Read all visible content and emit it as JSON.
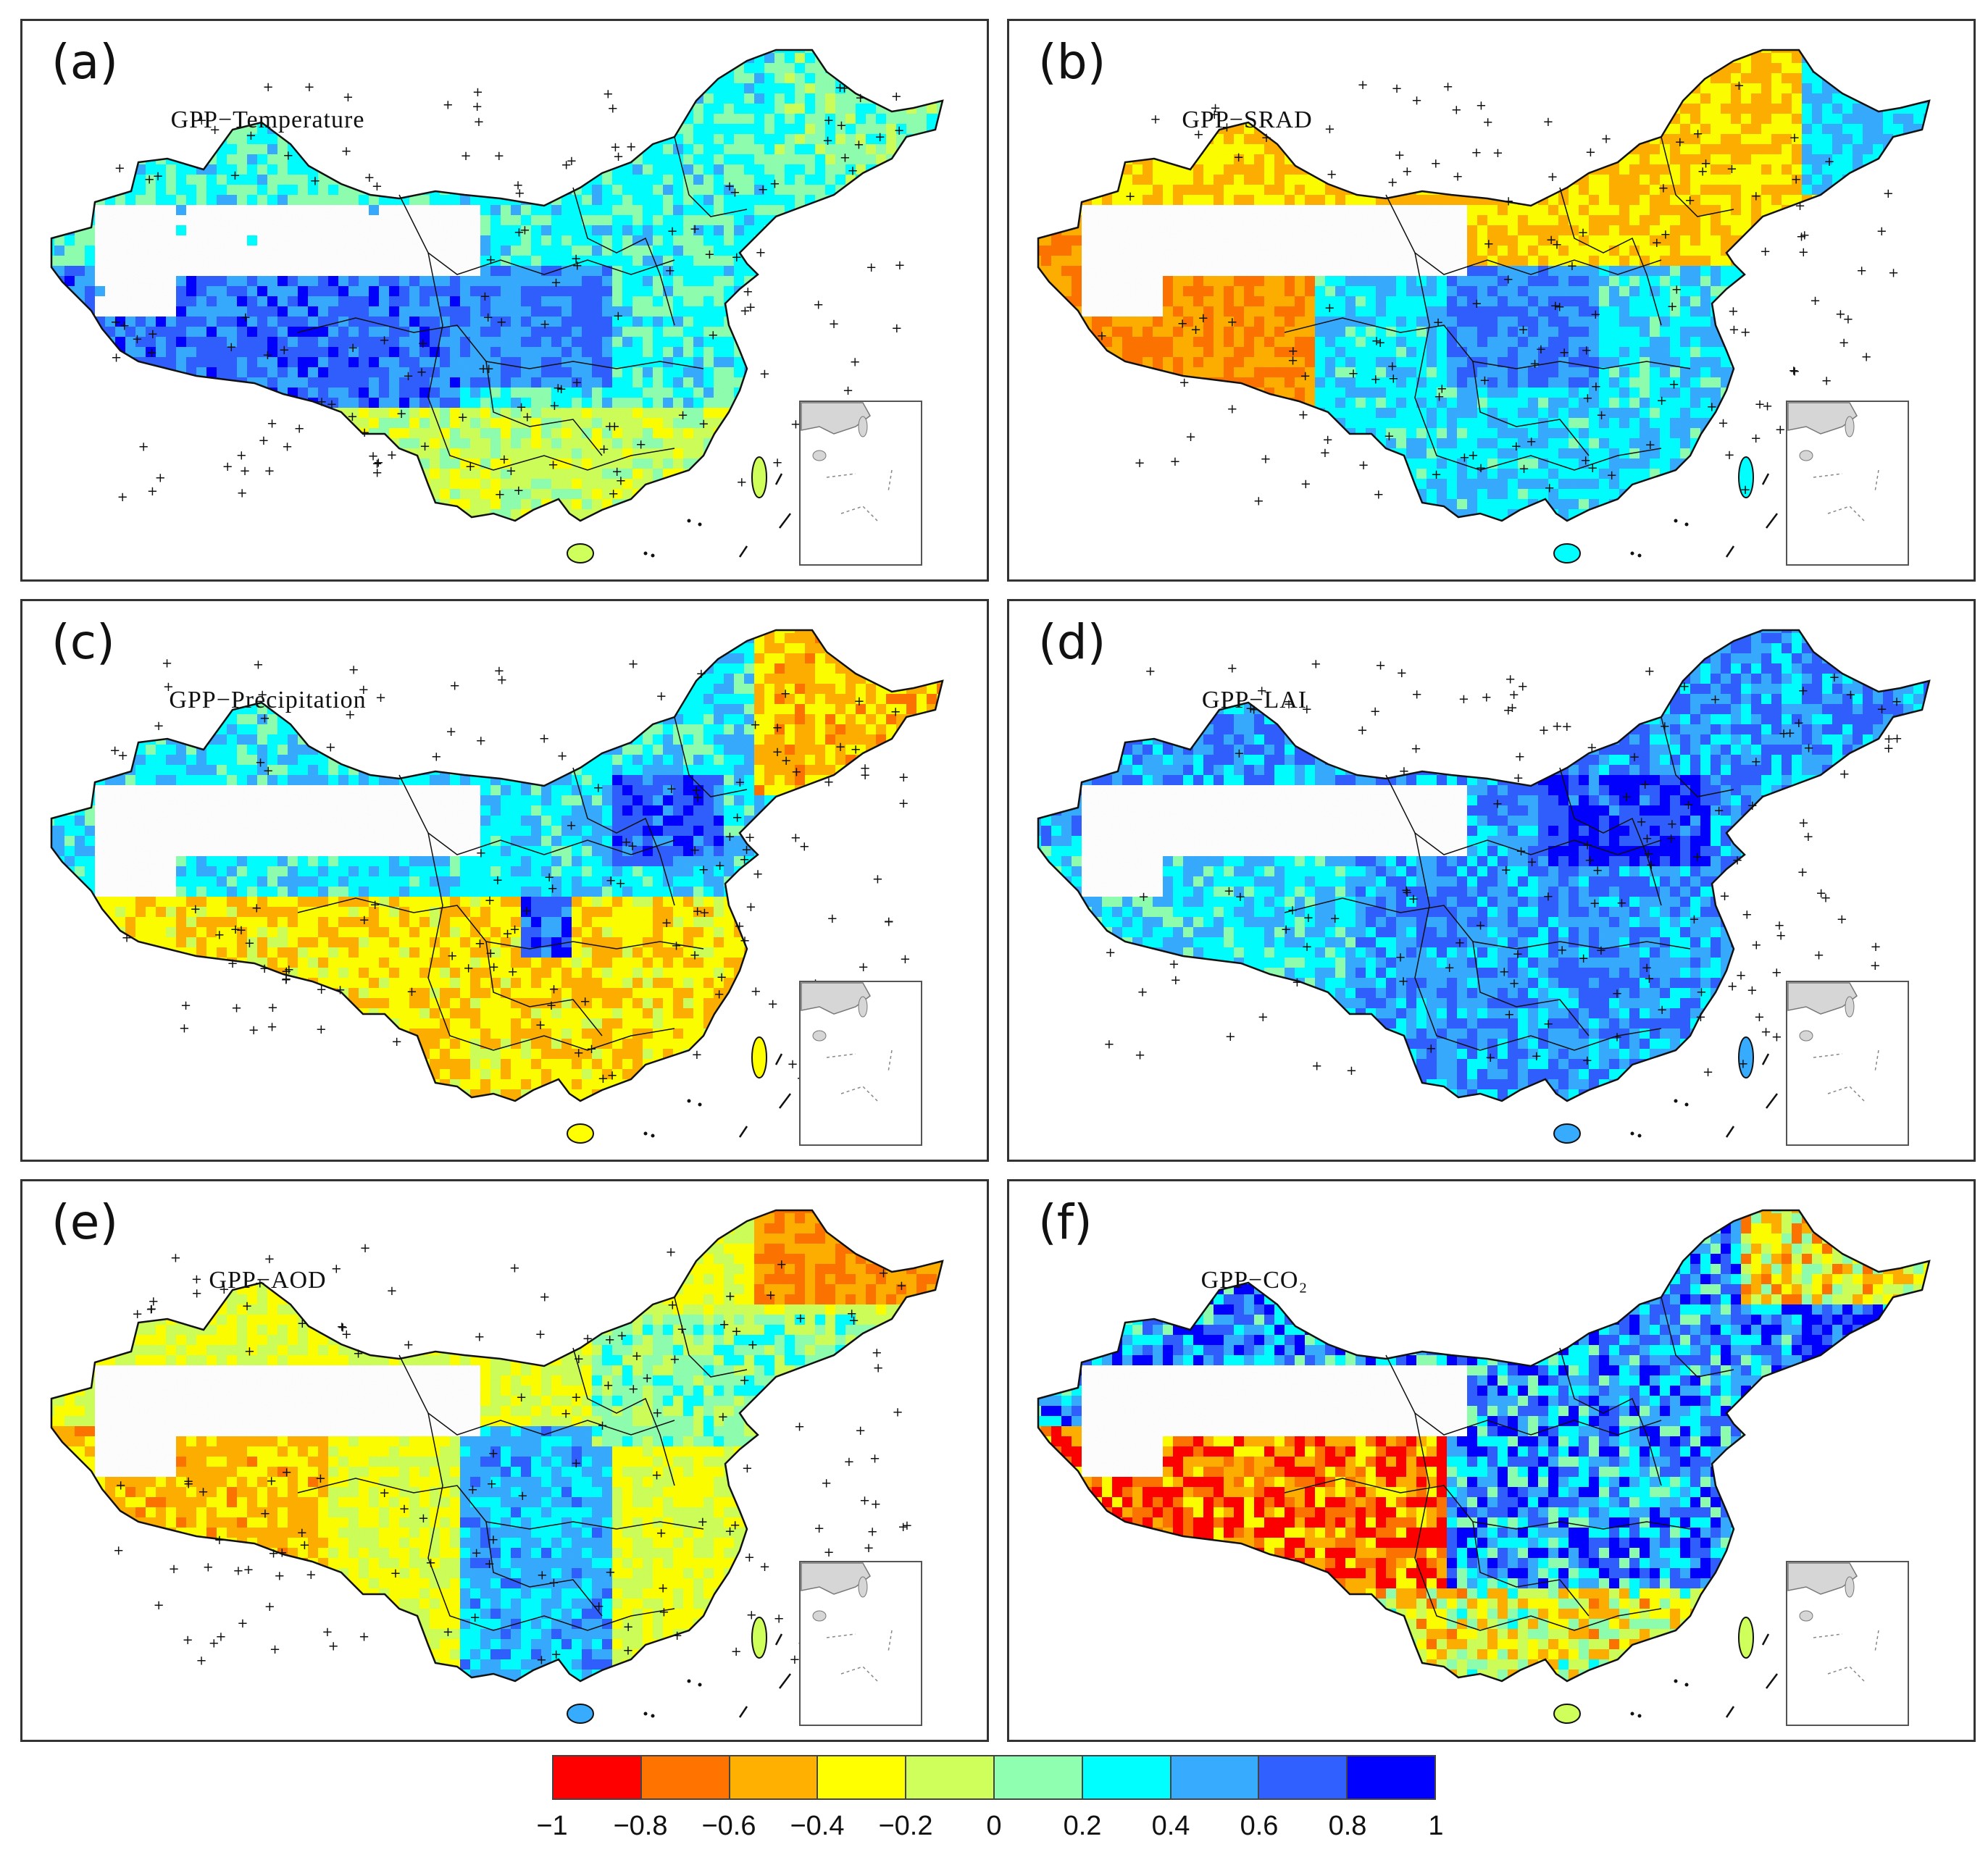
{
  "figure_title": "",
  "colors": {
    "palette": [
      "#ff0000",
      "#ff7400",
      "#ffb000",
      "#ffff00",
      "#cfff5a",
      "#8fffb0",
      "#00ffff",
      "#37acff",
      "#3060ff",
      "#0000ff"
    ],
    "outline": "#111111",
    "background": "#ffffff",
    "inset_land": "#d6d6d6"
  },
  "legend": {
    "ticks": [
      "−1",
      "−0.8",
      "−0.6",
      "−0.4",
      "−0.2",
      "0",
      "0.2",
      "0.4",
      "0.6",
      "0.8",
      "1"
    ],
    "range": [
      -1,
      1
    ]
  },
  "chart_data": {
    "type": "heatmap",
    "description_axes": "GPP correlation coefficient maps",
    "value_range": [
      -1,
      1
    ],
    "panels": [
      {
        "letter": "(a)",
        "title": "GPP−Temperature",
        "dominant": "mixed positive (0.2 to 0.8), strong positive over Tibetan Plateau and central basin",
        "significance_markers": true
      },
      {
        "letter": "(b)",
        "title": "GPP−SRAD",
        "dominant": "negative (-0.4 to -0.8) in northwest and north; positive in south/central",
        "significance_markers": true
      },
      {
        "letter": "(c)",
        "title": "GPP−Precipitation",
        "dominant": "positive in north, negative (-0.4 to -0.6) in south and far northeast",
        "significance_markers": true
      },
      {
        "letter": "(d)",
        "title": "GPP−LAI",
        "dominant": "strong positive (0.4 to 0.8) nationwide",
        "significance_markers": true
      },
      {
        "letter": "(e)",
        "title": "GPP−AOD",
        "dominant": "weak negative to neutral; negative in far northeast and southwest plateau",
        "significance_markers": true
      },
      {
        "letter": "(f)",
        "title": "GPP−CO₂",
        "dominant": "strong positive in east, strong negative on Tibetan Plateau",
        "significance_markers": false
      }
    ]
  }
}
